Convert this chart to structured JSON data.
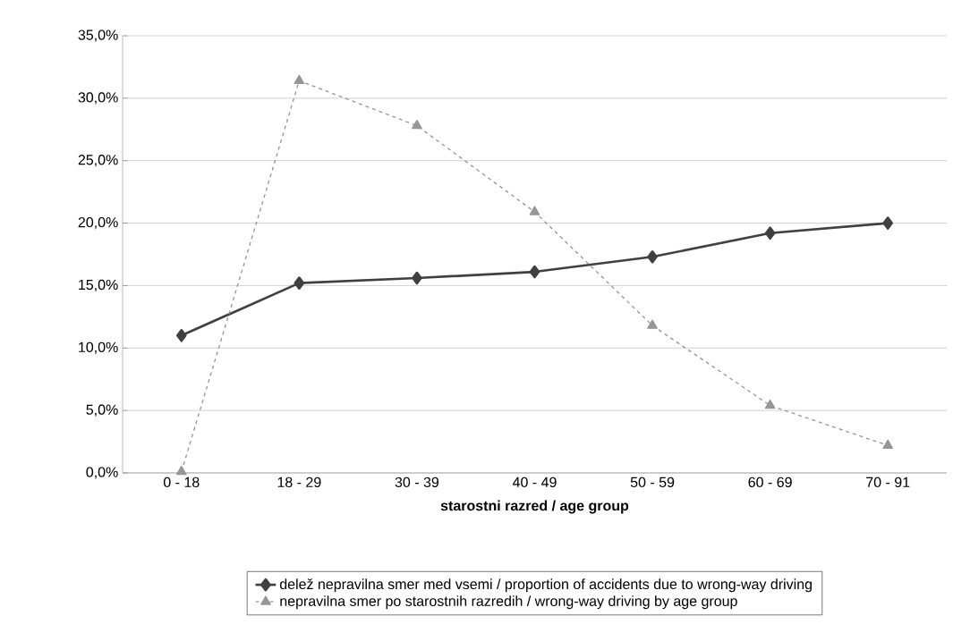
{
  "chart_data": {
    "type": "line",
    "xlabel": "starostni razred / age group",
    "categories": [
      "0 - 18",
      "18 - 29",
      "30  - 39",
      "40 - 49",
      "50 - 59",
      "60 - 69",
      "70 - 91"
    ],
    "series": [
      {
        "name": "delež nepravilna smer med vsemi / proportion of accidents due to wrong-way driving",
        "color": "#404040",
        "marker": "diamond",
        "line_style": "solid",
        "values": [
          11.0,
          15.2,
          15.6,
          16.1,
          17.3,
          19.2,
          20.0
        ]
      },
      {
        "name": "nepravilna smer po starostnih razredih / wrong-way driving by age group",
        "color": "#969696",
        "marker": "triangle",
        "line_style": "dashed",
        "values": [
          0.1,
          31.4,
          27.8,
          20.9,
          11.8,
          5.4,
          2.2
        ]
      }
    ],
    "ylim": [
      0,
      35
    ],
    "yticks": [
      {
        "value": 0,
        "label": "0,0%"
      },
      {
        "value": 5,
        "label": "5,0%"
      },
      {
        "value": 10,
        "label": "10,0%"
      },
      {
        "value": 15,
        "label": "15,0%"
      },
      {
        "value": 20,
        "label": "20,0%"
      },
      {
        "value": 25,
        "label": "25,0%"
      },
      {
        "value": 30,
        "label": "30,0%"
      },
      {
        "value": 35,
        "label": "35,0%"
      }
    ],
    "grid": "y",
    "legend": "bottom"
  }
}
